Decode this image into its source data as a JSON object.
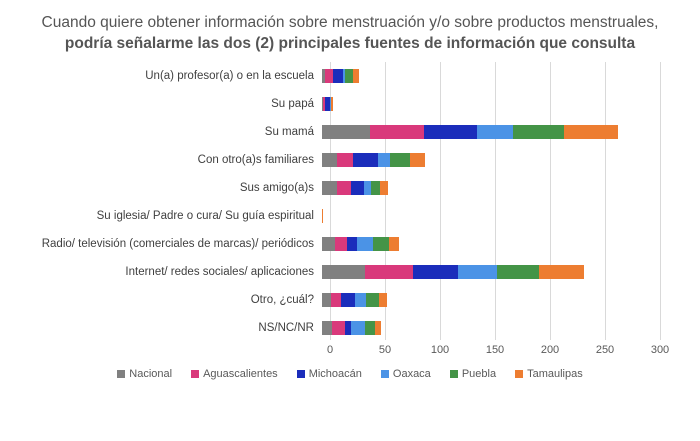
{
  "title": {
    "regular": "Cuando quiere obtener información sobre menstruación y/o sobre productos menstruales, ",
    "bold": "podría señalarme las dos (2) principales fuentes de información que consulta"
  },
  "chart_data": {
    "type": "bar",
    "orientation": "horizontal",
    "stacked": true,
    "categories": [
      "Un(a) profesor(a) o en la escuela",
      "Su papá",
      "Su mamá",
      "Con otro(a)s familiares",
      "Sus amigo(a)s",
      "Su iglesia/ Padre o cura/ Su guía espiritual",
      "Radio/ televisión (comerciales de marcas)/ periódicos",
      "Internet/ redes sociales/ aplicaciones",
      "Otro, ¿cuál?",
      "NS/NC/NR"
    ],
    "series": [
      {
        "name": "Nacional",
        "color": "#808080",
        "values": [
          3,
          1,
          44,
          14,
          14,
          0,
          12,
          39,
          8,
          9
        ]
      },
      {
        "name": "Aguascalientes",
        "color": "#D9397B",
        "values": [
          7,
          2,
          49,
          14,
          12,
          0,
          11,
          44,
          9,
          12
        ]
      },
      {
        "name": "Michoacán",
        "color": "#1B2DBB",
        "values": [
          9,
          4,
          48,
          23,
          12,
          0,
          9,
          41,
          13,
          5
        ]
      },
      {
        "name": "Oaxaca",
        "color": "#4B93E6",
        "values": [
          2,
          1,
          33,
          11,
          7,
          0,
          14,
          35,
          10,
          13
        ]
      },
      {
        "name": "Puebla",
        "color": "#449447",
        "values": [
          7,
          0,
          46,
          18,
          8,
          0,
          15,
          38,
          12,
          9
        ]
      },
      {
        "name": "Tamaulipas",
        "color": "#ED7D31",
        "values": [
          6,
          2,
          49,
          14,
          7,
          1,
          9,
          41,
          7,
          6
        ]
      }
    ],
    "xlim": [
      0,
      300
    ],
    "xticks": [
      0,
      50,
      100,
      150,
      200,
      250,
      300
    ],
    "grid": true,
    "legend_position": "bottom",
    "gridline_color": "#d9d9d9"
  }
}
